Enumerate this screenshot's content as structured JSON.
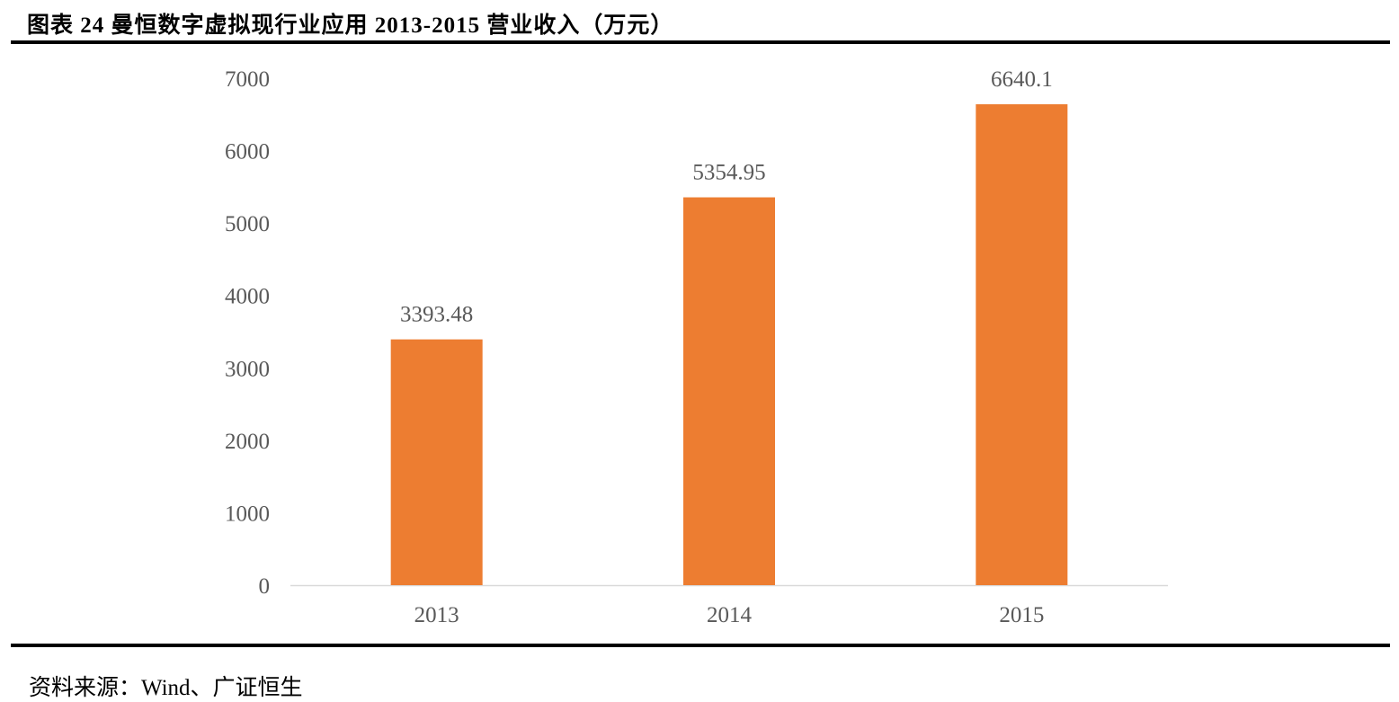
{
  "chart_data": {
    "type": "bar",
    "title": "图表 24  曼恒数字虚拟现行业应用 2013-2015 营业收入（万元）",
    "categories": [
      "2013",
      "2014",
      "2015"
    ],
    "values": [
      3393.48,
      5354.95,
      6640.1
    ],
    "data_labels": [
      "3393.48",
      "5354.95",
      "6640.1"
    ],
    "xlabel": "",
    "ylabel": "",
    "ylim": [
      0,
      7000
    ],
    "yticks": [
      "0",
      "1000",
      "2000",
      "3000",
      "4000",
      "5000",
      "6000",
      "7000"
    ],
    "grid": false,
    "legend": "none",
    "bar_color": "#ED7D31"
  },
  "source": "资料来源：Wind、广证恒生"
}
